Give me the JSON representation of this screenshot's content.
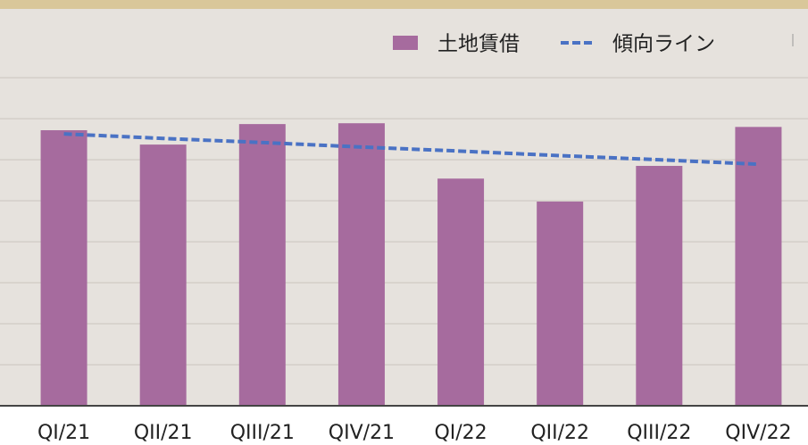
{
  "chart_data": {
    "type": "bar",
    "categories": [
      "QI/21",
      "QII/21",
      "QIII/21",
      "QIV/21",
      "QI/22",
      "QII/22",
      "QIII/22",
      "QIV/22"
    ],
    "series": [
      {
        "name": "土地賃借",
        "type": "bar",
        "color": "#a66b9e",
        "values": [
          6.72,
          6.37,
          6.87,
          6.89,
          5.54,
          4.98,
          5.85,
          6.8
        ]
      },
      {
        "name": "傾向ライン",
        "type": "line",
        "color": "#4a72c4",
        "dashed": true,
        "values": [
          6.63,
          6.52,
          6.42,
          6.31,
          6.21,
          6.1,
          6.0,
          5.89
        ]
      }
    ],
    "ylim": [
      0,
      9.7
    ],
    "yticks": [
      1,
      2,
      3,
      4,
      5,
      6,
      7,
      8
    ],
    "grid": true,
    "legend": "top-right"
  }
}
